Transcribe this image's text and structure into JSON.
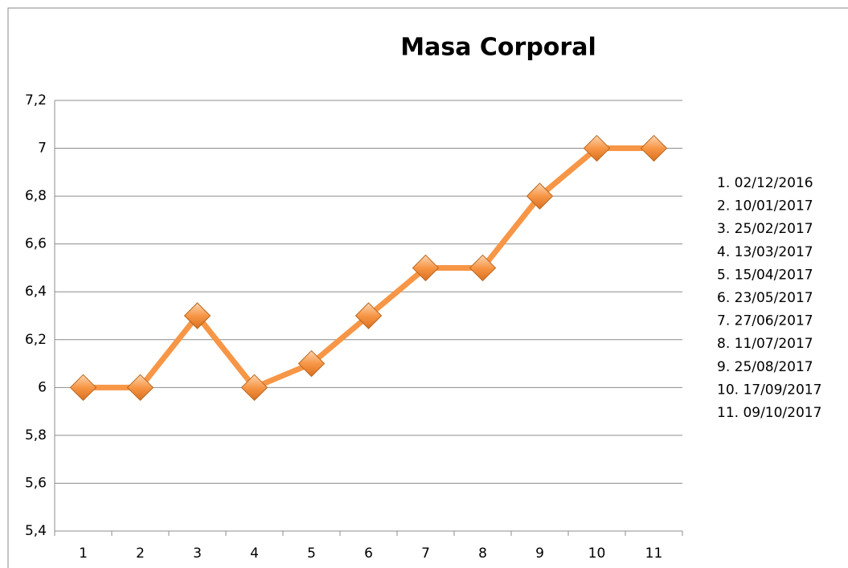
{
  "chart_data": {
    "type": "line",
    "title": "Masa Corporal",
    "categories": [
      "1",
      "2",
      "3",
      "4",
      "5",
      "6",
      "7",
      "8",
      "9",
      "10",
      "11"
    ],
    "series": [
      {
        "color": "#f79646",
        "values": [
          6,
          6,
          6.3,
          6,
          6.1,
          6.3,
          6.5,
          6.5,
          6.8,
          7,
          7
        ]
      }
    ],
    "ylim": [
      5.4,
      7.2
    ],
    "yticks": [
      {
        "value": 5.4,
        "label": "5,4"
      },
      {
        "value": 5.6,
        "label": "5,6"
      },
      {
        "value": 5.8,
        "label": "5,8"
      },
      6,
      {
        "value": 6.2,
        "label": "6,2"
      },
      {
        "value": 6.4,
        "label": "6,4"
      },
      {
        "value": 6.6,
        "label": "6,6"
      },
      {
        "value": 6.8,
        "label": "6,8"
      },
      7,
      {
        "value": 7.2,
        "label": "7,2"
      }
    ],
    "grid": true,
    "annotations": [
      "1. 02/12/2016",
      "2. 10/01/2017",
      "3. 25/02/2017",
      "4. 13/03/2017",
      "5. 15/04/2017",
      "6. 23/05/2017",
      "7. 27/06/2017",
      "8. 11/07/2017",
      "9. 25/08/2017",
      "10. 17/09/2017",
      "11. 09/10/2017"
    ]
  }
}
